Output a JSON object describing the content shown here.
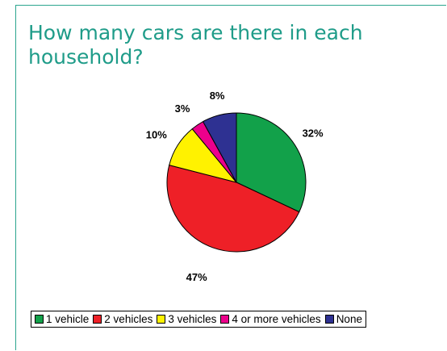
{
  "slide": {
    "title": "How many cars are there in each household?"
  },
  "chart_data": {
    "type": "pie",
    "title": "",
    "categories": [
      "1 vehicle",
      "2 vehicles",
      "3 vehicles",
      "4 or more vehicles",
      "None"
    ],
    "values": [
      32,
      47,
      10,
      3,
      8
    ],
    "labels": [
      "32%",
      "47%",
      "10%",
      "3%",
      "8%"
    ],
    "colors": [
      "#12a14a",
      "#ee2027",
      "#fff200",
      "#ec008c",
      "#2e3192"
    ],
    "legend_position": "bottom"
  }
}
